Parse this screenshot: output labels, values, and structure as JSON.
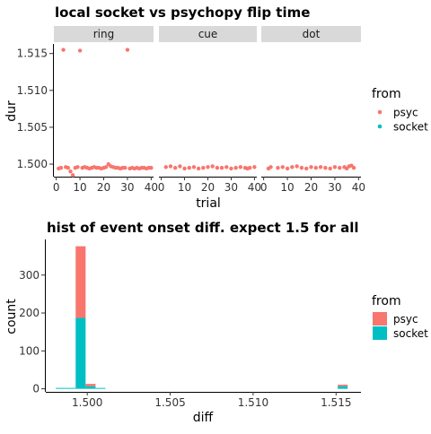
{
  "chart_data": [
    {
      "type": "scatter",
      "title": "local socket vs psychopy flip time",
      "xlabel": "trial",
      "ylabel": "dur",
      "facets": [
        "ring",
        "cue",
        "dot"
      ],
      "xlim": [
        -1,
        41
      ],
      "ylim": [
        1.4983,
        1.5163
      ],
      "x_ticks": [
        "0",
        "10",
        "20",
        "30",
        "40"
      ],
      "y_ticks": [
        "1.500",
        "1.505",
        "1.510",
        "1.515"
      ],
      "y_tick_values": [
        1.5,
        1.505,
        1.51,
        1.515
      ],
      "legend": {
        "title": "from",
        "position": "right",
        "entries": [
          "psyc",
          "socket"
        ]
      },
      "colors": {
        "psyc": "#F8766D",
        "socket": "#00BFC4"
      },
      "series": [
        {
          "name": "psyc",
          "facet": "ring",
          "points": [
            [
              1,
              1.4994
            ],
            [
              2,
              1.4995
            ],
            [
              3,
              1.5155
            ],
            [
              4,
              1.4996
            ],
            [
              5,
              1.4995
            ],
            [
              6,
              1.499
            ],
            [
              7,
              1.4985
            ],
            [
              8,
              1.4995
            ],
            [
              9,
              1.4996
            ],
            [
              10,
              1.5154
            ],
            [
              11,
              1.4995
            ],
            [
              12,
              1.4996
            ],
            [
              13,
              1.4995
            ],
            [
              14,
              1.4994
            ],
            [
              15,
              1.4995
            ],
            [
              16,
              1.4996
            ],
            [
              17,
              1.4995
            ],
            [
              18,
              1.4995
            ],
            [
              19,
              1.4994
            ],
            [
              20,
              1.4995
            ],
            [
              21,
              1.4996
            ],
            [
              22,
              1.5
            ],
            [
              23,
              1.4997
            ],
            [
              24,
              1.4996
            ],
            [
              25,
              1.4995
            ],
            [
              26,
              1.4995
            ],
            [
              27,
              1.4994
            ],
            [
              28,
              1.4995
            ],
            [
              29,
              1.4995
            ],
            [
              30,
              1.5155
            ],
            [
              31,
              1.4994
            ],
            [
              32,
              1.4995
            ],
            [
              33,
              1.4994
            ],
            [
              34,
              1.4995
            ],
            [
              35,
              1.4994
            ],
            [
              36,
              1.4995
            ],
            [
              37,
              1.4995
            ],
            [
              38,
              1.4994
            ],
            [
              39,
              1.4995
            ],
            [
              40,
              1.4995
            ]
          ]
        },
        {
          "name": "psyc",
          "facet": "cue",
          "points": [
            [
              2,
              1.4996
            ],
            [
              4,
              1.4997
            ],
            [
              6,
              1.4995
            ],
            [
              8,
              1.4997
            ],
            [
              10,
              1.4994
            ],
            [
              12,
              1.4995
            ],
            [
              14,
              1.4996
            ],
            [
              16,
              1.4994
            ],
            [
              18,
              1.4995
            ],
            [
              20,
              1.4996
            ],
            [
              22,
              1.4997
            ],
            [
              24,
              1.4995
            ],
            [
              26,
              1.4995
            ],
            [
              28,
              1.4996
            ],
            [
              30,
              1.4994
            ],
            [
              32,
              1.4995
            ],
            [
              34,
              1.4996
            ],
            [
              36,
              1.4995
            ],
            [
              37,
              1.4994
            ],
            [
              38,
              1.4995
            ],
            [
              40,
              1.4996
            ]
          ]
        },
        {
          "name": "psyc",
          "facet": "dot",
          "points": [
            [
              2,
              1.4994
            ],
            [
              3,
              1.4996
            ],
            [
              6,
              1.4995
            ],
            [
              8,
              1.4996
            ],
            [
              10,
              1.4994
            ],
            [
              12,
              1.4996
            ],
            [
              14,
              1.4997
            ],
            [
              16,
              1.4995
            ],
            [
              18,
              1.4994
            ],
            [
              20,
              1.4996
            ],
            [
              22,
              1.4995
            ],
            [
              24,
              1.4996
            ],
            [
              26,
              1.4995
            ],
            [
              28,
              1.4994
            ],
            [
              30,
              1.4996
            ],
            [
              32,
              1.4995
            ],
            [
              34,
              1.4996
            ],
            [
              35,
              1.4994
            ],
            [
              36,
              1.4997
            ],
            [
              37,
              1.4998
            ],
            [
              38,
              1.4995
            ]
          ]
        }
      ]
    },
    {
      "type": "bar",
      "stacked": true,
      "title": "hist of event onset diff. expect 1.5 for all",
      "xlabel": "diff",
      "ylabel": "count",
      "xlim": [
        1.4975,
        1.5165
      ],
      "ylim": [
        -8,
        394
      ],
      "x_ticks": [
        "1.500",
        "1.505",
        "1.510",
        "1.515"
      ],
      "x_tick_values": [
        1.5,
        1.505,
        1.51,
        1.515
      ],
      "y_ticks": [
        "0",
        "100",
        "200",
        "300"
      ],
      "y_tick_values": [
        0,
        100,
        200,
        300
      ],
      "legend": {
        "title": "from",
        "position": "right",
        "entries": [
          "psyc",
          "socket"
        ]
      },
      "colors": {
        "psyc": "#F8766D",
        "socket": "#00BFC4"
      },
      "bin_width": 0.0006,
      "bins": [
        {
          "x0": 1.4981,
          "psyc": 0,
          "socket": 1
        },
        {
          "x0": 1.4987,
          "psyc": 0,
          "socket": 1
        },
        {
          "x0": 1.4993,
          "psyc": 189,
          "socket": 187
        },
        {
          "x0": 1.4999,
          "psyc": 6,
          "socket": 7
        },
        {
          "x0": 1.5005,
          "psyc": 0,
          "socket": 1
        },
        {
          "x0": 1.5151,
          "psyc": 4,
          "socket": 7
        }
      ]
    }
  ]
}
